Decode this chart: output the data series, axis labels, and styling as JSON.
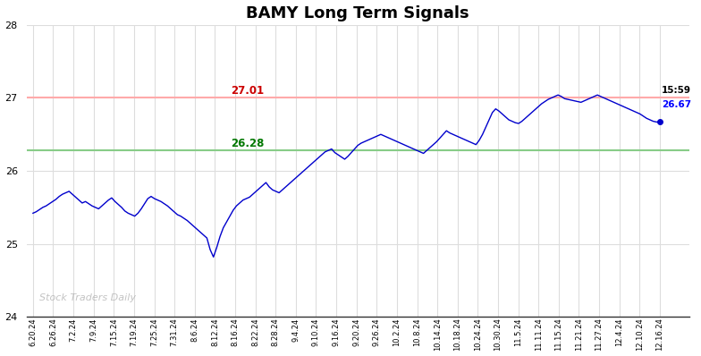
{
  "title": "BAMY Long Term Signals",
  "resistance_level": 27.01,
  "support_level": 26.28,
  "resistance_line_color": "#ffaaaa",
  "support_line_color": "#88cc88",
  "resistance_label_color": "#cc0000",
  "support_label_color": "#007700",
  "line_color": "#0000cc",
  "last_time": "15:59",
  "last_price": 26.67,
  "last_price_color": "#0000ff",
  "watermark": "Stock Traders Daily",
  "watermark_color": "#aaaaaa",
  "ylim": [
    24.0,
    28.0
  ],
  "yticks": [
    24,
    25,
    26,
    27,
    28
  ],
  "background_color": "#ffffff",
  "x_labels": [
    "6.20.24",
    "6.26.24",
    "7.2.24",
    "7.9.24",
    "7.15.24",
    "7.19.24",
    "7.25.24",
    "7.31.24",
    "8.6.24",
    "8.12.24",
    "8.16.24",
    "8.22.24",
    "8.28.24",
    "9.4.24",
    "9.10.24",
    "9.16.24",
    "9.20.24",
    "9.26.24",
    "10.2.24",
    "10.8.24",
    "10.14.24",
    "10.18.24",
    "10.24.24",
    "10.30.24",
    "11.5.24",
    "11.11.24",
    "11.15.24",
    "11.21.24",
    "11.27.24",
    "12.4.24",
    "12.10.24",
    "12.16.24"
  ],
  "price_data": [
    25.42,
    25.44,
    25.47,
    25.5,
    25.52,
    25.55,
    25.58,
    25.61,
    25.65,
    25.68,
    25.7,
    25.72,
    25.68,
    25.64,
    25.6,
    25.56,
    25.58,
    25.55,
    25.52,
    25.5,
    25.48,
    25.52,
    25.56,
    25.6,
    25.63,
    25.58,
    25.54,
    25.5,
    25.45,
    25.42,
    25.4,
    25.38,
    25.42,
    25.48,
    25.55,
    25.62,
    25.65,
    25.62,
    25.6,
    25.58,
    25.55,
    25.52,
    25.48,
    25.44,
    25.4,
    25.38,
    25.35,
    25.32,
    25.28,
    25.24,
    25.2,
    25.16,
    25.12,
    25.08,
    24.92,
    24.82,
    24.95,
    25.1,
    25.22,
    25.3,
    25.38,
    25.46,
    25.52,
    25.56,
    25.6,
    25.62,
    25.64,
    25.68,
    25.72,
    25.76,
    25.8,
    25.84,
    25.78,
    25.74,
    25.72,
    25.7,
    25.74,
    25.78,
    25.82,
    25.86,
    25.9,
    25.94,
    25.98,
    26.02,
    26.06,
    26.1,
    26.14,
    26.18,
    26.22,
    26.26,
    26.28,
    26.3,
    26.25,
    26.22,
    26.19,
    26.16,
    26.2,
    26.25,
    26.3,
    26.35,
    26.38,
    26.4,
    26.42,
    26.44,
    26.46,
    26.48,
    26.5,
    26.48,
    26.46,
    26.44,
    26.42,
    26.4,
    26.38,
    26.36,
    26.34,
    26.32,
    26.3,
    26.28,
    26.26,
    26.24,
    26.28,
    26.32,
    26.36,
    26.4,
    26.45,
    26.5,
    26.55,
    26.52,
    26.5,
    26.48,
    26.46,
    26.44,
    26.42,
    26.4,
    26.38,
    26.36,
    26.42,
    26.5,
    26.6,
    26.7,
    26.8,
    26.85,
    26.82,
    26.78,
    26.74,
    26.7,
    26.68,
    26.66,
    26.65,
    26.68,
    26.72,
    26.76,
    26.8,
    26.84,
    26.88,
    26.92,
    26.95,
    26.98,
    27.0,
    27.02,
    27.04,
    27.02,
    26.99,
    26.98,
    26.97,
    26.96,
    26.95,
    26.94,
    26.96,
    26.98,
    27.0,
    27.02,
    27.04,
    27.02,
    27.0,
    26.98,
    26.96,
    26.94,
    26.92,
    26.9,
    26.88,
    26.86,
    26.84,
    26.82,
    26.8,
    26.78,
    26.75,
    26.72,
    26.7,
    26.68,
    26.67,
    26.67
  ]
}
